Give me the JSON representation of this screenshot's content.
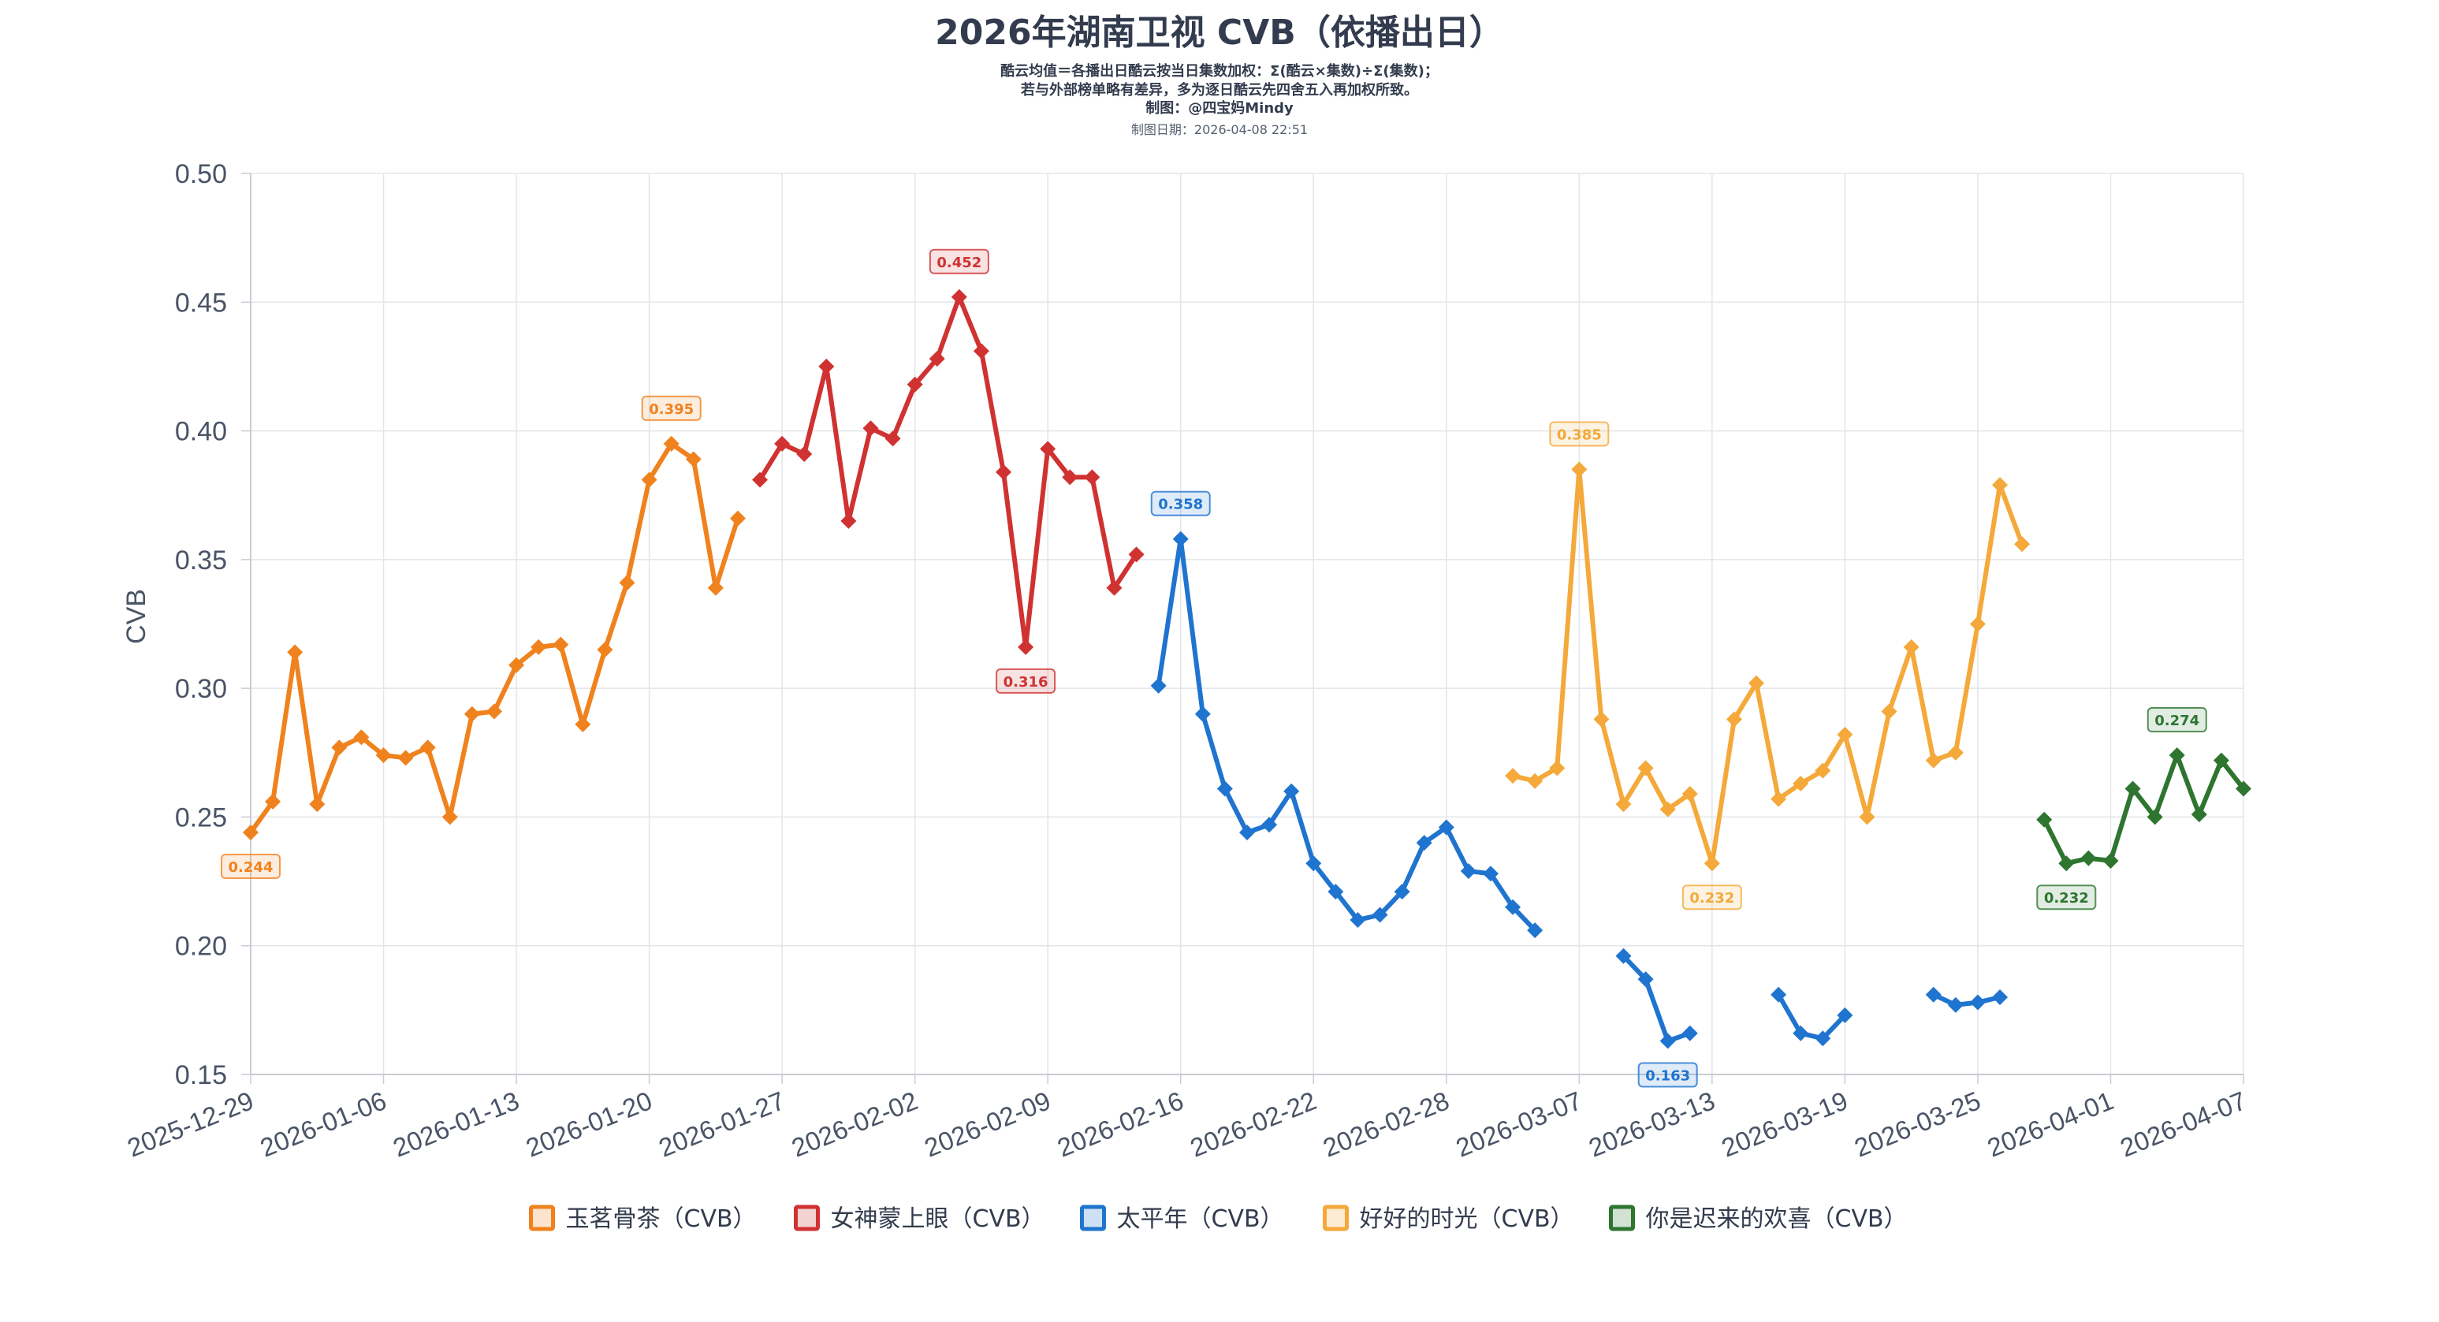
{
  "chart_data": {
    "type": "line",
    "title": "2026年湖南卫视 CVB（依播出日）",
    "subtitle_lines": [
      "酷云均值＝各播出日酷云按当日集数加权：Σ(酷云×集数)÷Σ(集数)；",
      "若与外部榜单略有差异，多为逐日酷云先四舍五入再加权所致。",
      "制图：@四宝妈Mindy"
    ],
    "date_line": "制图日期：2026-04-08 22:51",
    "ylabel": "CVB",
    "xlabel": "",
    "ylim": [
      0.15,
      0.5
    ],
    "yticks": [
      "0.15",
      "0.20",
      "0.25",
      "0.30",
      "0.35",
      "0.40",
      "0.45",
      "0.50"
    ],
    "x_start": "2025-12-29",
    "x_end": "2026-04-07",
    "xticks": [
      {
        "label": "2025-12-29",
        "day": 0
      },
      {
        "label": "2026-01-06",
        "day": 6
      },
      {
        "label": "2026-01-13",
        "day": 12
      },
      {
        "label": "2026-01-20",
        "day": 18
      },
      {
        "label": "2026-01-27",
        "day": 24
      },
      {
        "label": "2026-02-02",
        "day": 30
      },
      {
        "label": "2026-02-09",
        "day": 36
      },
      {
        "label": "2026-02-16",
        "day": 42
      },
      {
        "label": "2026-02-22",
        "day": 48
      },
      {
        "label": "2026-02-28",
        "day": 54
      },
      {
        "label": "2026-03-07",
        "day": 60
      },
      {
        "label": "2026-03-13",
        "day": 66
      },
      {
        "label": "2026-03-19",
        "day": 72
      },
      {
        "label": "2026-03-25",
        "day": 78
      },
      {
        "label": "2026-04-01",
        "day": 84
      },
      {
        "label": "2026-04-07",
        "day": 90
      }
    ],
    "grid": true,
    "legend_position": "bottom",
    "series": [
      {
        "name": "玉茗骨茶（CVB）",
        "color": "#f0821e",
        "segments": [
          [
            [
              0,
              0.244
            ],
            [
              1,
              0.256
            ],
            [
              2,
              0.314
            ],
            [
              3,
              0.255
            ],
            [
              4,
              0.277
            ],
            [
              5,
              0.281
            ],
            [
              6,
              0.274
            ],
            [
              7,
              0.273
            ],
            [
              8,
              0.277
            ],
            [
              9,
              0.25
            ],
            [
              10,
              0.29
            ],
            [
              11,
              0.291
            ],
            [
              12,
              0.309
            ],
            [
              13,
              0.316
            ],
            [
              14,
              0.317
            ],
            [
              15,
              0.286
            ],
            [
              16,
              0.315
            ],
            [
              17,
              0.341
            ],
            [
              18,
              0.381
            ],
            [
              19,
              0.395
            ],
            [
              20,
              0.389
            ],
            [
              21,
              0.339
            ],
            [
              22,
              0.366
            ]
          ]
        ],
        "labels": [
          {
            "day": 0,
            "value": 0.244,
            "text": "0.244",
            "pos": "below"
          },
          {
            "day": 19,
            "value": 0.395,
            "text": "0.395",
            "pos": "above"
          }
        ]
      },
      {
        "name": "女神蒙上眼（CVB）",
        "color": "#d03232",
        "segments": [
          [
            [
              23,
              0.381
            ],
            [
              24,
              0.395
            ],
            [
              25,
              0.391
            ],
            [
              26,
              0.425
            ],
            [
              27,
              0.365
            ],
            [
              28,
              0.401
            ],
            [
              29,
              0.397
            ],
            [
              30,
              0.418
            ],
            [
              31,
              0.428
            ],
            [
              32,
              0.452
            ],
            [
              33,
              0.431
            ],
            [
              34,
              0.384
            ],
            [
              35,
              0.316
            ],
            [
              36,
              0.393
            ],
            [
              37,
              0.382
            ],
            [
              38,
              0.382
            ],
            [
              39,
              0.339
            ],
            [
              40,
              0.352
            ]
          ]
        ],
        "labels": [
          {
            "day": 32,
            "value": 0.452,
            "text": "0.452",
            "pos": "above"
          },
          {
            "day": 35,
            "value": 0.316,
            "text": "0.316",
            "pos": "below"
          }
        ]
      },
      {
        "name": "太平年（CVB）",
        "color": "#1f74cf",
        "segments": [
          [
            [
              41,
              0.301
            ],
            [
              42,
              0.358
            ],
            [
              43,
              0.29
            ],
            [
              44,
              0.261
            ],
            [
              45,
              0.244
            ],
            [
              46,
              0.247
            ],
            [
              47,
              0.26
            ],
            [
              48,
              0.232
            ],
            [
              49,
              0.221
            ],
            [
              50,
              0.21
            ],
            [
              51,
              0.212
            ],
            [
              52,
              0.221
            ],
            [
              53,
              0.24
            ],
            [
              54,
              0.246
            ],
            [
              55,
              0.229
            ],
            [
              56,
              0.228
            ],
            [
              57,
              0.215
            ],
            [
              58,
              0.206
            ]
          ],
          [
            [
              62,
              0.196
            ],
            [
              63,
              0.187
            ],
            [
              64,
              0.163
            ],
            [
              65,
              0.166
            ]
          ],
          [
            [
              69,
              0.181
            ],
            [
              70,
              0.166
            ],
            [
              71,
              0.164
            ],
            [
              72,
              0.173
            ]
          ],
          [
            [
              76,
              0.181
            ],
            [
              77,
              0.177
            ],
            [
              78,
              0.178
            ],
            [
              79,
              0.18
            ]
          ]
        ],
        "labels": [
          {
            "day": 42,
            "value": 0.358,
            "text": "0.358",
            "pos": "above"
          },
          {
            "day": 64,
            "value": 0.163,
            "text": "0.163",
            "pos": "below"
          }
        ]
      },
      {
        "name": "好好的时光（CVB）",
        "color": "#f4a93a",
        "segments": [
          [
            [
              57,
              0.266
            ],
            [
              58,
              0.264
            ],
            [
              59,
              0.269
            ],
            [
              60,
              0.385
            ],
            [
              61,
              0.288
            ],
            [
              62,
              0.255
            ],
            [
              63,
              0.269
            ],
            [
              64,
              0.253
            ],
            [
              65,
              0.259
            ],
            [
              66,
              0.232
            ],
            [
              67,
              0.288
            ],
            [
              68,
              0.302
            ],
            [
              69,
              0.257
            ],
            [
              70,
              0.263
            ],
            [
              71,
              0.268
            ],
            [
              72,
              0.282
            ],
            [
              73,
              0.25
            ],
            [
              74,
              0.291
            ],
            [
              75,
              0.316
            ],
            [
              76,
              0.272
            ],
            [
              77,
              0.275
            ],
            [
              78,
              0.325
            ],
            [
              79,
              0.379
            ],
            [
              80,
              0.356
            ]
          ]
        ],
        "labels": [
          {
            "day": 60,
            "value": 0.385,
            "text": "0.385",
            "pos": "above"
          },
          {
            "day": 66,
            "value": 0.232,
            "text": "0.232",
            "pos": "below"
          }
        ]
      },
      {
        "name": "你是迟来的欢喜（CVB）",
        "color": "#2e7530",
        "segments": [
          [
            [
              81,
              0.249
            ],
            [
              82,
              0.232
            ],
            [
              83,
              0.234
            ],
            [
              84,
              0.233
            ],
            [
              85,
              0.261
            ],
            [
              86,
              0.25
            ],
            [
              87,
              0.274
            ],
            [
              88,
              0.251
            ],
            [
              89,
              0.272
            ],
            [
              90,
              0.261
            ]
          ]
        ],
        "labels": [
          {
            "day": 82,
            "value": 0.232,
            "text": "0.232",
            "pos": "below"
          },
          {
            "day": 87,
            "value": 0.274,
            "text": "0.274",
            "pos": "above"
          }
        ]
      }
    ]
  }
}
